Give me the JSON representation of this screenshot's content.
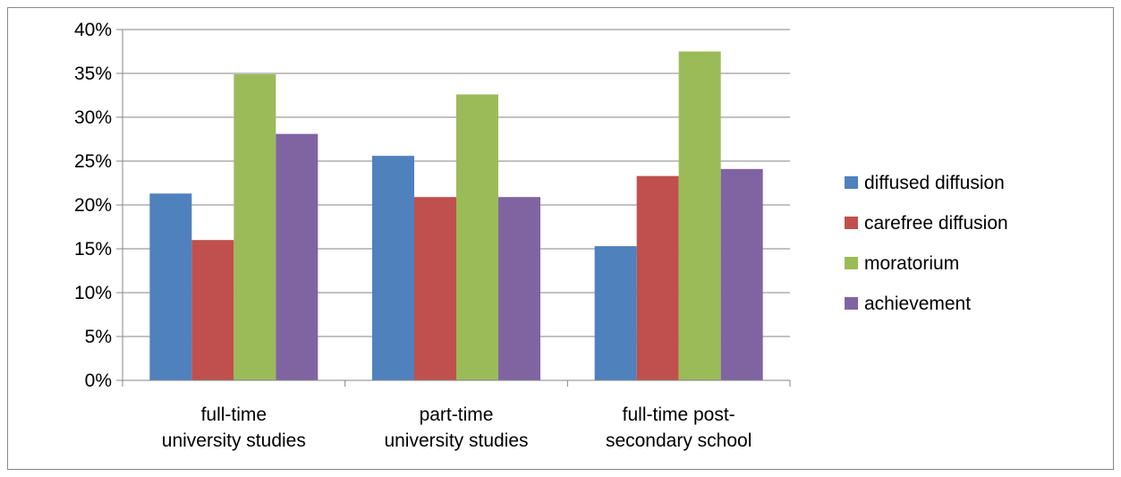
{
  "chart_data": {
    "type": "bar",
    "categories": [
      [
        "full-time",
        "university studies"
      ],
      [
        "part-time",
        "university studies"
      ],
      [
        "full-time post-",
        "secondary school"
      ]
    ],
    "series": [
      {
        "name": "diffused diffusion",
        "color": "#4f81bd",
        "values": [
          21.3,
          25.6,
          15.3
        ]
      },
      {
        "name": "carefree diffusion",
        "color": "#c0504d",
        "values": [
          16.0,
          20.9,
          23.3
        ]
      },
      {
        "name": "moratorium",
        "color": "#9bbb59",
        "values": [
          34.9,
          32.6,
          37.5
        ]
      },
      {
        "name": "achievement",
        "color": "#8064a2",
        "values": [
          28.1,
          20.9,
          24.1
        ]
      }
    ],
    "ylim": [
      0,
      40
    ],
    "yticks": [
      "0%",
      "5%",
      "10%",
      "15%",
      "20%",
      "25%",
      "30%",
      "35%",
      "40%"
    ],
    "grid": true,
    "legend_position": "right"
  }
}
